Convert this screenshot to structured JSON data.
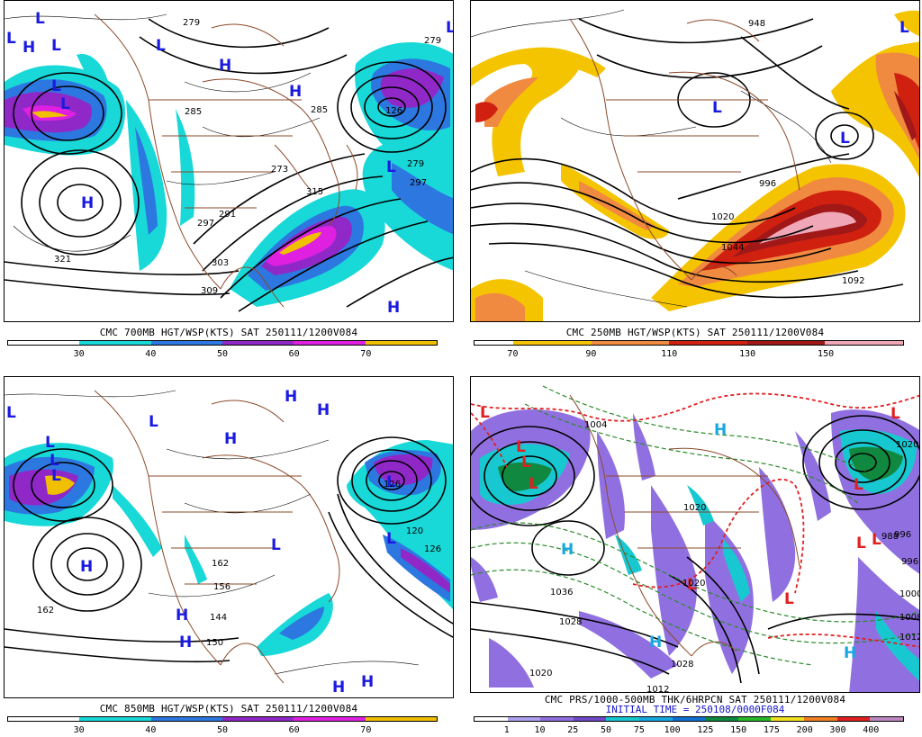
{
  "panels": [
    {
      "id": "p700",
      "caption": "CMC 700MB HGT/WSP(KTS) SAT 250111/1200V084",
      "colorbar": {
        "colors": [
          "#ffffff",
          "#ffffff",
          "#18d8d8",
          "#18d8d8",
          "#2c78e0",
          "#2c78e0",
          "#9028c8",
          "#9028c8",
          "#e020e0",
          "#e020e0",
          "#f0c000",
          "#f0c000"
        ],
        "ticks": [
          "30",
          "40",
          "50",
          "60",
          "70"
        ]
      },
      "highs": [
        "H",
        "H",
        "H",
        "H"
      ],
      "lows": [
        "L",
        "L",
        "L",
        "L",
        "L",
        "L",
        "L",
        "L"
      ],
      "contour_labels": [
        "279",
        "285",
        "297",
        "291",
        "303",
        "309",
        "321",
        "273",
        "279",
        "285",
        "126",
        "279",
        "315",
        "297"
      ]
    },
    {
      "id": "p250",
      "caption": "CMC 250MB HGT/WSP(KTS) SAT 250111/1200V084",
      "colorbar": {
        "colors": [
          "#ffffff",
          "#f5c400",
          "#f5c400",
          "#f08a40",
          "#f08a40",
          "#d02010",
          "#d02010",
          "#a01818",
          "#a01818",
          "#f0a8b8",
          "#f0a8b8"
        ],
        "ticks": [
          "70",
          "90",
          "110",
          "130",
          "150"
        ]
      },
      "highs": [],
      "lows": [
        "L",
        "L",
        "L"
      ],
      "contour_labels": [
        "948",
        "1020",
        "1044",
        "1092",
        "996"
      ]
    },
    {
      "id": "p850",
      "caption": "CMC 850MB HGT/WSP(KTS) SAT 250111/1200V084",
      "colorbar": {
        "colors": [
          "#ffffff",
          "#ffffff",
          "#18d8d8",
          "#18d8d8",
          "#2c78e0",
          "#2c78e0",
          "#9028c8",
          "#9028c8",
          "#e020e0",
          "#e020e0",
          "#f0c000",
          "#f0c000"
        ],
        "ticks": [
          "30",
          "40",
          "50",
          "60",
          "70"
        ]
      },
      "highs": [
        "H",
        "H",
        "H",
        "H",
        "H",
        "H",
        "H",
        "H"
      ],
      "lows": [
        "L",
        "L",
        "L",
        "L",
        "L",
        "L",
        "L",
        "L"
      ],
      "contour_labels": [
        "162",
        "156",
        "144",
        "150",
        "126",
        "120",
        "162",
        "126"
      ]
    },
    {
      "id": "pprs",
      "caption": "CMC PRS/1000-500MB THK/6HRPCN SAT 250111/1200V084",
      "caption2": "INITIAL TIME = 250108/0000F084",
      "colorbar": {
        "colors": [
          "#ffffff",
          "#b0a0f0",
          "#9070e0",
          "#7048c8",
          "#18c8d0",
          "#18a8e0",
          "#1070d0",
          "#108840",
          "#28b828",
          "#f0e020",
          "#f08020",
          "#e02020",
          "#c088c0"
        ],
        "ticks": [
          "1",
          "10",
          "25",
          "50",
          "75",
          "100",
          "125",
          "150",
          "175",
          "200",
          "300",
          "400"
        ]
      },
      "highs": [
        "H",
        "H",
        "H",
        "H"
      ],
      "lows": [
        "L",
        "L",
        "L",
        "L",
        "L",
        "L",
        "L",
        "L",
        "L",
        "L"
      ],
      "contour_labels": [
        "1004",
        "1036",
        "1028",
        "1020",
        "1012",
        "1028",
        "996",
        "1020",
        "1000",
        "1008",
        "1012",
        "1020",
        "988",
        "996",
        "1020"
      ]
    }
  ]
}
